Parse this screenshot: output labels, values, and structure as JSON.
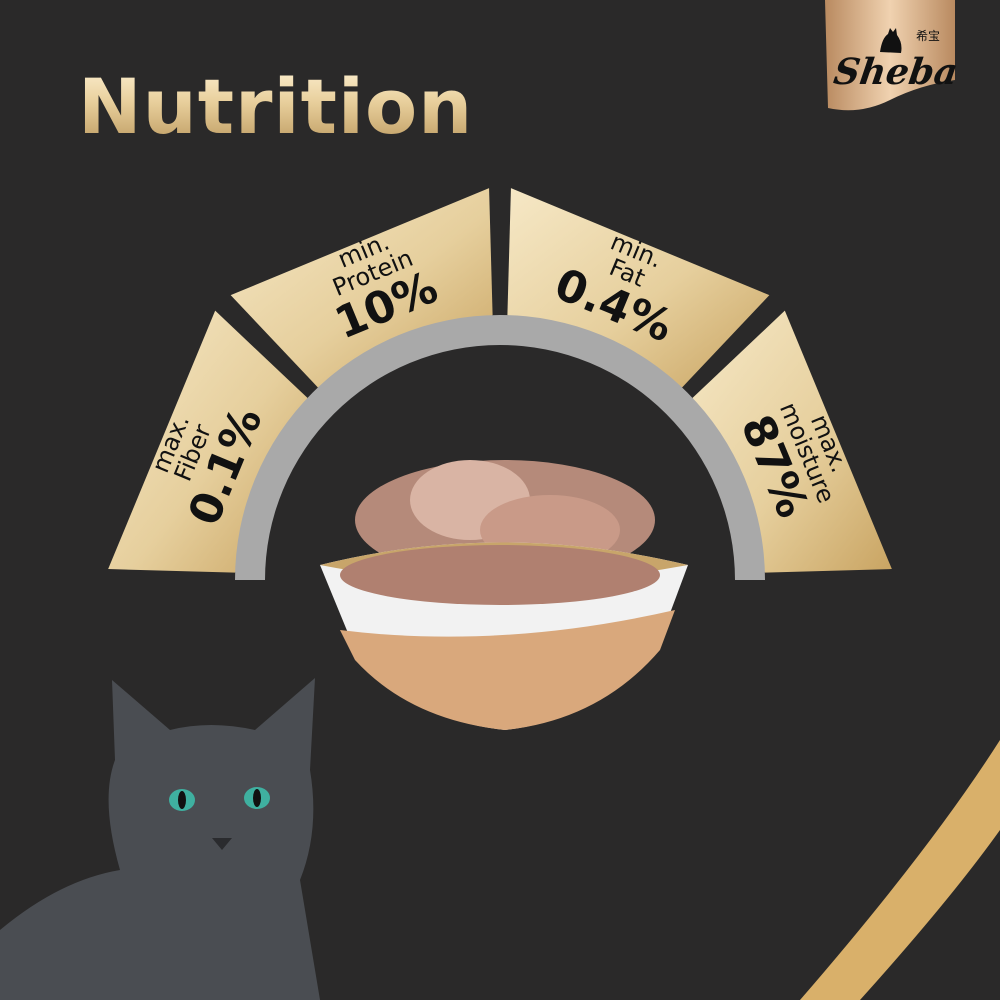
{
  "title": "Nutrition",
  "logo": {
    "text": "Sheba",
    "subtext": "希宝"
  },
  "colors": {
    "background": "#2a2929",
    "gold_light": "#f6e8c6",
    "gold_dark": "#c9a462",
    "ring": "#a9a9a9"
  },
  "nutrients": [
    {
      "qualifier": "max.",
      "name": "Fiber",
      "value": "0.1%"
    },
    {
      "qualifier": "min.",
      "name": "Protein",
      "value": "10%"
    },
    {
      "qualifier": "min.",
      "name": "Fat",
      "value": "0.4%"
    },
    {
      "qualifier": "max.",
      "name": "moisture",
      "value": "87%"
    }
  ]
}
